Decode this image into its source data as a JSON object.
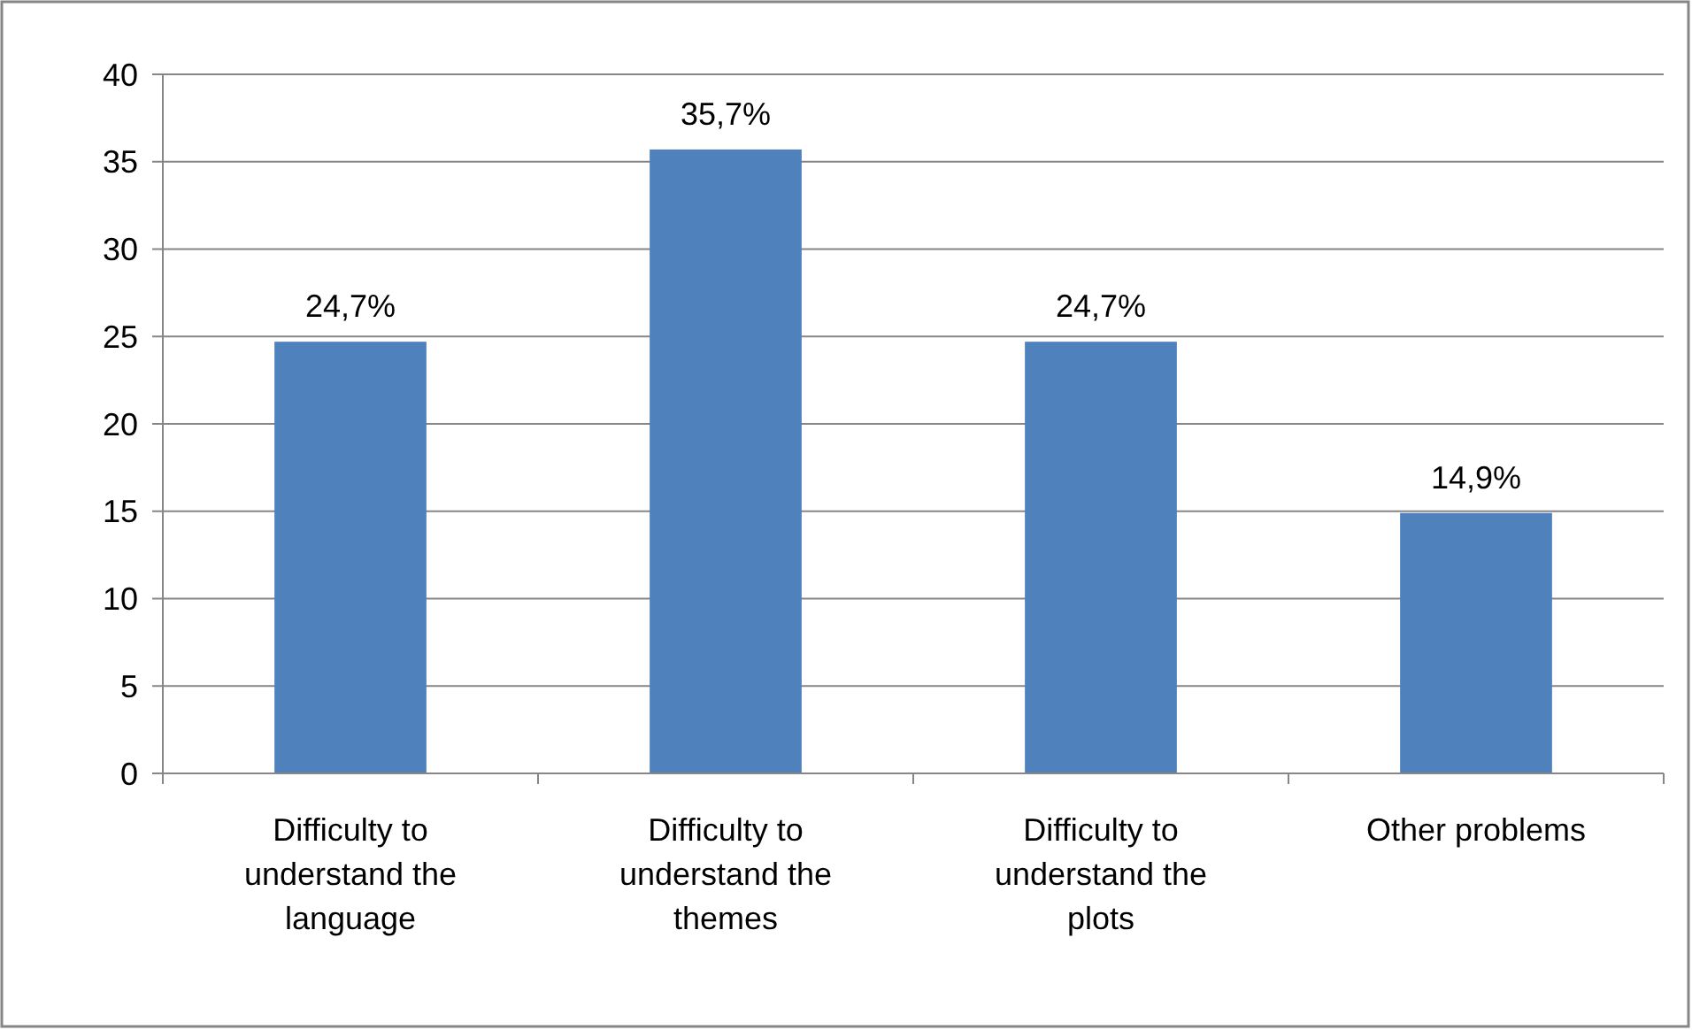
{
  "chart_data": {
    "type": "bar",
    "categories": [
      "Difficulty to understand the language",
      "Difficulty to understand the themes",
      "Difficulty to understand the plots",
      "Other problems"
    ],
    "values": [
      24.7,
      35.7,
      24.7,
      14.9
    ],
    "value_labels": [
      "24,7%",
      "35,7%",
      "24,7%",
      "14,9%"
    ],
    "color": "#4f81bd",
    "ylim": [
      0,
      40
    ],
    "yticks": [
      0,
      5,
      10,
      15,
      20,
      25,
      30,
      35,
      40
    ],
    "grid": "y"
  }
}
